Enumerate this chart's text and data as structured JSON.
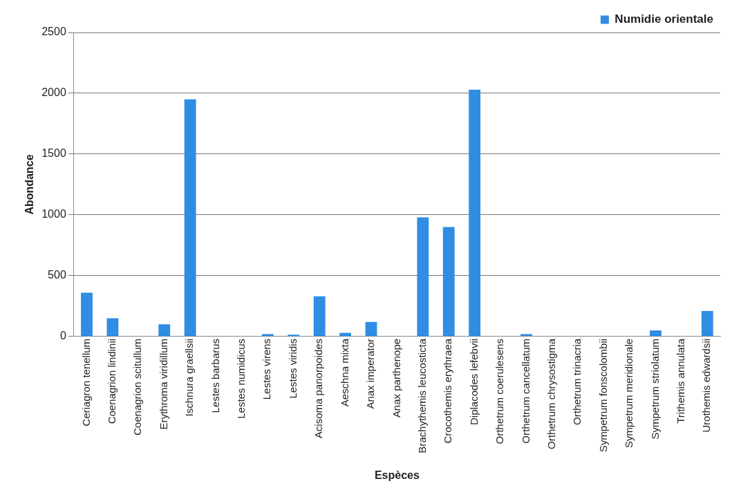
{
  "chart_data": {
    "type": "bar",
    "xlabel": "Espèces",
    "ylabel": "Abondance",
    "categories": [
      "Ceriagron tenellum",
      "Coenagrion lindinii",
      "Coenagrion scitullum",
      "Erythroma viridillum",
      "Ischnura graellsii",
      "Lestes barbarus",
      "Lestes numidicus",
      "Lestes virens",
      "Lestes viridis",
      "Acisoma panorpoides",
      "Aeschna mixta",
      "Anax imperator",
      "Anax parthenope",
      "Brachythemis leucosticta",
      "Crocothemis erythraea",
      "Diplacodes lefebvii",
      "Orthetrum coerulesens",
      "Orthetrum cancellatum",
      "Orthetrum chrysostigma",
      "Orthetrum trinacria",
      "Sympetrum fonscolombii",
      "Sympetrum meridionale",
      "Sympetrum striolatum",
      "Trithemis annulata",
      "Urothemis edwardsii"
    ],
    "series": [
      {
        "name": "Numidie orientale",
        "color": "#2f8de4",
        "values": [
          360,
          150,
          0,
          100,
          1950,
          0,
          0,
          20,
          15,
          330,
          30,
          120,
          0,
          980,
          900,
          2030,
          0,
          20,
          0,
          0,
          0,
          0,
          50,
          0,
          210
        ]
      }
    ],
    "ylim": [
      0,
      2500
    ],
    "yticks": [
      0,
      500,
      1000,
      1500,
      2000,
      2500
    ],
    "grid": "y",
    "legend": "top right"
  }
}
